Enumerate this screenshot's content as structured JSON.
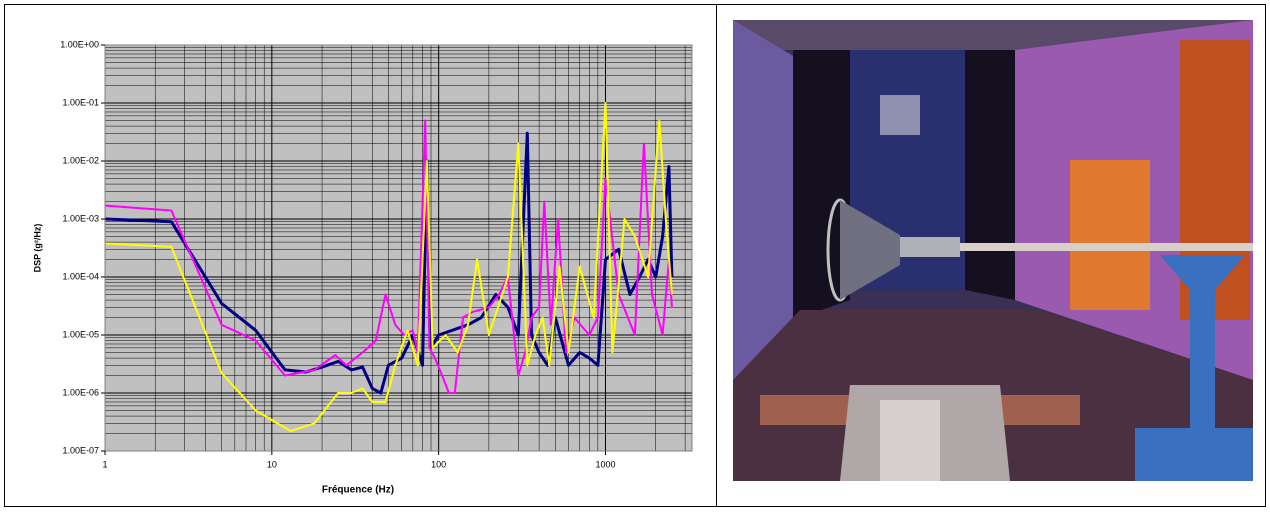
{
  "chart_data": {
    "type": "line",
    "x_label": "Fréquence (Hz)",
    "y_label": "DSP (g²/Hz)",
    "xscale": "log",
    "yscale": "log",
    "grid": true,
    "minor_grid": true,
    "xlim": [
      1,
      3300
    ],
    "ylim": [
      1e-07,
      1
    ],
    "xticks": [
      1,
      10,
      100,
      1000
    ],
    "yticks": [
      {
        "value": 1e-07,
        "label": "1.00E-07"
      },
      {
        "value": 1e-06,
        "label": "1.00E-06"
      },
      {
        "value": 1e-05,
        "label": "1.00E-05"
      },
      {
        "value": 0.0001,
        "label": "1.00E-04"
      },
      {
        "value": 0.001,
        "label": "1.00E-03"
      },
      {
        "value": 0.01,
        "label": "1.00E-02"
      },
      {
        "value": 0.1,
        "label": "1.00E-01"
      },
      {
        "value": 1,
        "label": "1.00E+00"
      }
    ],
    "series": [
      {
        "color": "#000080",
        "width": 3,
        "x": [
          1,
          2.5,
          5,
          8,
          12,
          16,
          20,
          25,
          30,
          35,
          40,
          45,
          50,
          60,
          70,
          80,
          85,
          90,
          100,
          120,
          150,
          180,
          220,
          260,
          300,
          340,
          360,
          400,
          450,
          500,
          600,
          700,
          800,
          900,
          1000,
          1200,
          1400,
          1600,
          1800,
          2000,
          2200,
          2400,
          2500
        ],
        "values": [
          0.001,
          0.0009,
          3.5e-05,
          1.2e-05,
          2.5e-06,
          2.3e-06,
          2.8e-06,
          3.5e-06,
          2.5e-06,
          2.8e-06,
          1.2e-06,
          1e-06,
          3e-06,
          4e-06,
          1e-05,
          3e-06,
          0.01,
          6e-06,
          1e-05,
          1.2e-05,
          1.5e-05,
          2e-05,
          5e-05,
          3e-05,
          1e-05,
          0.03,
          1e-05,
          5e-06,
          3e-06,
          2e-05,
          3e-06,
          5e-06,
          4e-06,
          3e-06,
          0.0002,
          0.0003,
          5e-05,
          0.0001,
          0.0002,
          0.0001,
          0.0005,
          0.008,
          0.0001
        ]
      },
      {
        "color": "#ff00ff",
        "width": 2,
        "x": [
          1,
          2.5,
          5,
          8,
          12,
          18,
          24,
          28,
          35,
          42,
          48,
          55,
          62,
          70,
          75,
          83,
          88,
          95,
          105,
          115,
          125,
          140,
          160,
          200,
          230,
          260,
          300,
          330,
          360,
          400,
          430,
          470,
          520,
          580,
          650,
          800,
          900,
          1000,
          1200,
          1500,
          1700,
          1900,
          2200,
          2400,
          2500
        ],
        "values": [
          0.0017,
          0.0014,
          1.5e-05,
          8e-06,
          2e-06,
          2.5e-06,
          4.5e-06,
          3e-06,
          5e-06,
          8e-06,
          5e-05,
          1.5e-05,
          1e-05,
          1.2e-05,
          5e-06,
          0.05,
          6e-06,
          4e-06,
          2e-06,
          1e-06,
          1e-06,
          2e-05,
          2.5e-05,
          3e-05,
          5e-05,
          0.0001,
          2e-06,
          5e-06,
          2e-05,
          3e-05,
          0.002,
          1.5e-05,
          0.001,
          5e-06,
          2e-05,
          1e-05,
          2e-05,
          0.005,
          5e-05,
          1e-05,
          0.02,
          5e-05,
          1e-05,
          0.0002,
          3e-05
        ]
      },
      {
        "color": "#ffff00",
        "width": 2,
        "x": [
          1,
          2.5,
          5,
          8,
          13,
          18,
          25,
          30,
          35,
          40,
          48,
          55,
          65,
          75,
          85,
          92,
          110,
          130,
          150,
          170,
          200,
          260,
          300,
          340,
          380,
          420,
          460,
          530,
          600,
          700,
          850,
          1000,
          1100,
          1300,
          1500,
          1800,
          2100,
          2300,
          2500
        ],
        "values": [
          0.00038,
          0.00033,
          2.2e-06,
          5e-07,
          2.2e-07,
          3e-07,
          1e-06,
          1e-06,
          1.2e-06,
          7e-07,
          7e-07,
          3e-06,
          1.2e-05,
          3e-06,
          0.01,
          6e-06,
          1e-05,
          5e-06,
          1.5e-05,
          0.0002,
          1e-05,
          0.0001,
          0.02,
          3e-06,
          1e-05,
          2e-05,
          3e-06,
          0.00015,
          5e-06,
          0.00015,
          2e-05,
          0.1,
          5e-06,
          0.001,
          0.0005,
          0.0001,
          0.05,
          0.001,
          5e-05
        ]
      }
    ]
  }
}
